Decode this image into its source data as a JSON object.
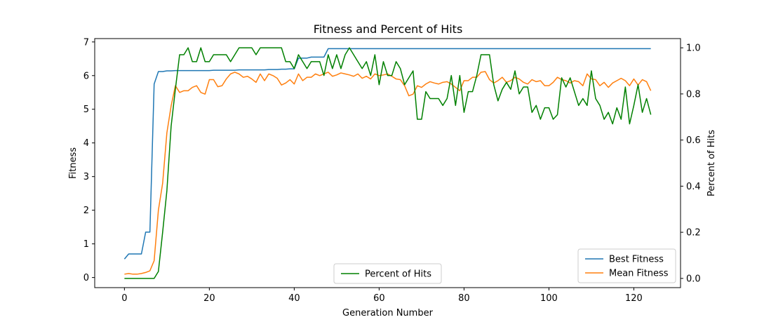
{
  "chart_data": {
    "type": "line",
    "title": "Fitness and Percent of Hits",
    "xlabel": "Generation Number",
    "ylabel": "Fitness",
    "ylabel_right": "Percent of Hits",
    "xlim": [
      -7,
      131
    ],
    "ylim": [
      -0.3,
      7.1
    ],
    "ylim_right": [
      -0.04,
      1.04
    ],
    "x_ticks": [
      0,
      20,
      40,
      60,
      80,
      100,
      120
    ],
    "y_ticks": [
      0,
      1,
      2,
      3,
      4,
      5,
      6,
      7
    ],
    "y_ticks_right": [
      0.0,
      0.2,
      0.4,
      0.6,
      0.8,
      1.0
    ],
    "x_tick_labels": [
      "0",
      "20",
      "40",
      "60",
      "80",
      "100",
      "120"
    ],
    "y_tick_labels": [
      "0",
      "1",
      "2",
      "3",
      "4",
      "5",
      "6",
      "7"
    ],
    "y_tick_labels_right": [
      "0.0",
      "0.2",
      "0.4",
      "0.6",
      "0.8",
      "1.0"
    ],
    "grid": false,
    "series": [
      {
        "name": "Best Fitness",
        "axis": "left",
        "color": "#1f77b4",
        "values": [
          0.55,
          0.7,
          0.7,
          0.7,
          0.7,
          1.35,
          1.35,
          5.75,
          6.12,
          6.12,
          6.14,
          6.14,
          6.15,
          6.15,
          6.15,
          6.15,
          6.15,
          6.15,
          6.15,
          6.15,
          6.15,
          6.16,
          6.16,
          6.16,
          6.16,
          6.16,
          6.16,
          6.17,
          6.17,
          6.17,
          6.17,
          6.17,
          6.17,
          6.17,
          6.18,
          6.18,
          6.18,
          6.19,
          6.19,
          6.2,
          6.2,
          6.52,
          6.52,
          6.52,
          6.55,
          6.55,
          6.55,
          6.55,
          6.8,
          6.8,
          6.8,
          6.8,
          6.8,
          6.8,
          6.8,
          6.8,
          6.8,
          6.8,
          6.8,
          6.8,
          6.8,
          6.8,
          6.8,
          6.8,
          6.8,
          6.8,
          6.8,
          6.8,
          6.8,
          6.8,
          6.8,
          6.8,
          6.8,
          6.8,
          6.8,
          6.8,
          6.8,
          6.8,
          6.8,
          6.8,
          6.8,
          6.8,
          6.8,
          6.8,
          6.8,
          6.8,
          6.8,
          6.8,
          6.8,
          6.8,
          6.8,
          6.8,
          6.8,
          6.8,
          6.8,
          6.8,
          6.8,
          6.8,
          6.8,
          6.8,
          6.8,
          6.8,
          6.8,
          6.8,
          6.8,
          6.8,
          6.8,
          6.8,
          6.8,
          6.8,
          6.8,
          6.8,
          6.8,
          6.8,
          6.8,
          6.8,
          6.8,
          6.8,
          6.8,
          6.8,
          6.8,
          6.8,
          6.8,
          6.8,
          6.8
        ]
      },
      {
        "name": "Mean Fitness",
        "axis": "left",
        "color": "#ff7f0e",
        "values": [
          0.1,
          0.12,
          0.1,
          0.1,
          0.12,
          0.15,
          0.2,
          0.5,
          2.0,
          2.8,
          4.3,
          5.1,
          5.7,
          5.5,
          5.55,
          5.55,
          5.65,
          5.7,
          5.5,
          5.45,
          5.88,
          5.88,
          5.67,
          5.7,
          5.9,
          6.05,
          6.1,
          6.05,
          5.95,
          5.98,
          5.9,
          5.8,
          6.05,
          5.85,
          6.05,
          6.0,
          5.92,
          5.72,
          5.78,
          5.88,
          5.75,
          6.05,
          5.85,
          5.95,
          5.95,
          6.05,
          6.0,
          6.05,
          6.1,
          5.98,
          6.02,
          6.08,
          6.05,
          6.02,
          5.98,
          6.05,
          5.92,
          5.98,
          5.9,
          6.05,
          6.0,
          6.02,
          6.05,
          5.98,
          5.9,
          5.88,
          5.7,
          5.4,
          5.45,
          5.7,
          5.65,
          5.75,
          5.82,
          5.78,
          5.75,
          5.8,
          5.82,
          5.75,
          5.65,
          5.55,
          5.85,
          5.85,
          5.95,
          5.95,
          6.1,
          6.12,
          5.88,
          5.78,
          5.85,
          5.95,
          5.8,
          5.85,
          5.95,
          5.9,
          5.8,
          5.75,
          5.88,
          5.82,
          5.85,
          5.7,
          5.7,
          5.8,
          5.95,
          5.88,
          5.85,
          5.78,
          5.85,
          5.82,
          5.7,
          6.05,
          5.9,
          5.88,
          5.7,
          5.8,
          5.65,
          5.78,
          5.85,
          5.92,
          5.85,
          5.7,
          5.9,
          5.72,
          5.88,
          5.82,
          5.55
        ]
      },
      {
        "name": "Percent of Hits",
        "axis": "right",
        "color": "#008000",
        "values": [
          0.0,
          0.0,
          0.0,
          0.0,
          0.0,
          0.0,
          0.0,
          0.0,
          0.03,
          0.2,
          0.38,
          0.66,
          0.82,
          0.97,
          0.97,
          1.0,
          0.94,
          0.94,
          1.0,
          0.94,
          0.94,
          0.97,
          0.97,
          0.97,
          0.97,
          0.94,
          0.97,
          1.0,
          1.0,
          1.0,
          1.0,
          0.97,
          1.0,
          1.0,
          1.0,
          1.0,
          1.0,
          1.0,
          0.94,
          0.94,
          0.91,
          0.97,
          0.94,
          0.91,
          0.94,
          0.94,
          0.94,
          0.88,
          0.97,
          0.91,
          0.97,
          0.91,
          0.97,
          1.0,
          0.97,
          0.94,
          0.91,
          0.94,
          0.88,
          0.97,
          0.84,
          0.94,
          0.88,
          0.88,
          0.94,
          0.91,
          0.84,
          0.87,
          0.9,
          0.69,
          0.69,
          0.81,
          0.78,
          0.78,
          0.78,
          0.75,
          0.78,
          0.88,
          0.75,
          0.88,
          0.72,
          0.81,
          0.81,
          0.88,
          0.97,
          0.97,
          0.97,
          0.84,
          0.77,
          0.82,
          0.85,
          0.82,
          0.9,
          0.8,
          0.83,
          0.83,
          0.72,
          0.75,
          0.69,
          0.74,
          0.74,
          0.69,
          0.71,
          0.87,
          0.83,
          0.87,
          0.81,
          0.75,
          0.78,
          0.75,
          0.9,
          0.78,
          0.75,
          0.69,
          0.72,
          0.67,
          0.74,
          0.69,
          0.83,
          0.67,
          0.75,
          0.84,
          0.72,
          0.78,
          0.71
        ]
      }
    ],
    "legends": [
      {
        "placement": "lower-right",
        "items": [
          "Best Fitness",
          "Mean Fitness"
        ]
      },
      {
        "placement": "lower-center",
        "items": [
          "Percent of Hits"
        ]
      }
    ]
  }
}
